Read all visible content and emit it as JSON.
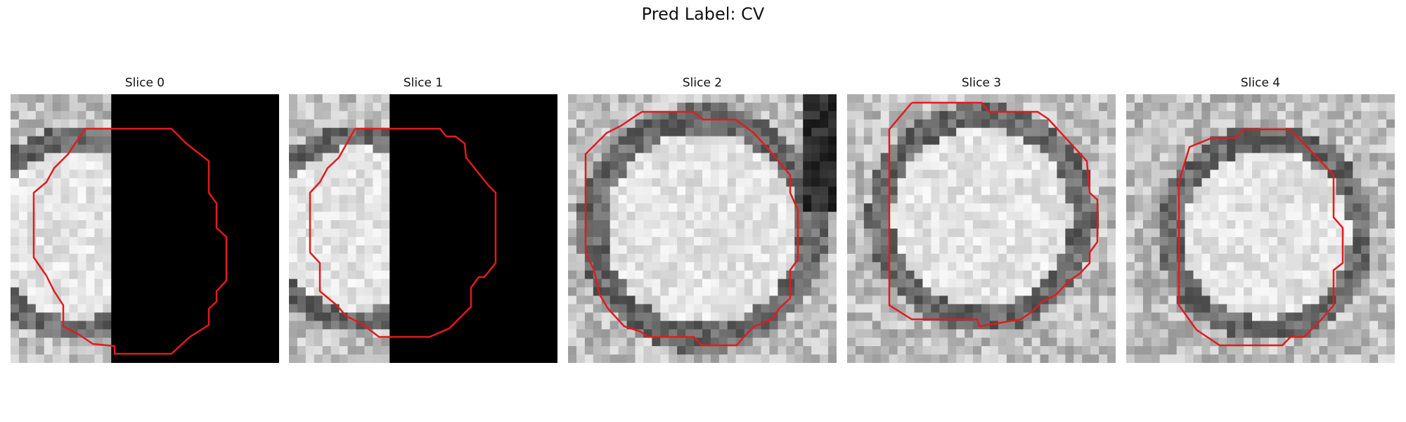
{
  "figure": {
    "title": "Pred Label: CV"
  },
  "colors": {
    "contour": "#e31a1c"
  },
  "slices": [
    {
      "title": "Slice 0",
      "masked_right": true
    },
    {
      "title": "Slice 1",
      "masked_right": true
    },
    {
      "title": "Slice 2",
      "masked_right": false
    },
    {
      "title": "Slice 3",
      "masked_right": false
    },
    {
      "title": "Slice 4",
      "masked_right": false
    }
  ]
}
